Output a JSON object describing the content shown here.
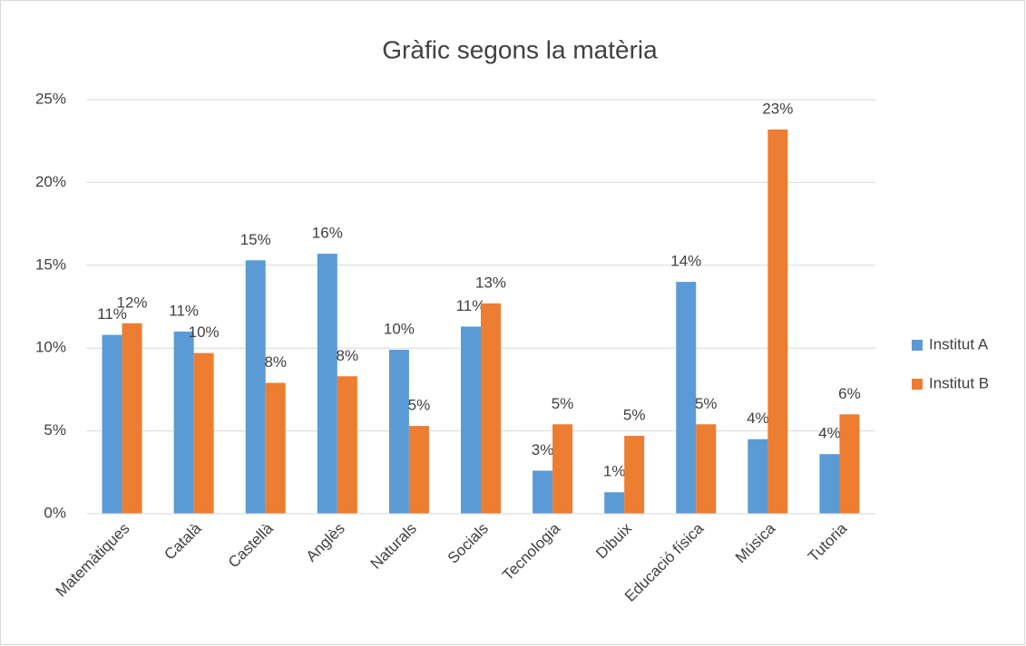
{
  "chart_data": {
    "type": "bar",
    "title": "Gràfic segons la matèria",
    "categories": [
      "Matemàtiques",
      "Català",
      "Castellà",
      "Anglès",
      "Naturals",
      "Socials",
      "Tecnologia",
      "Dibuix",
      "Educació física",
      "Música",
      "Tutoria"
    ],
    "series": [
      {
        "name": "Institut A",
        "color": "#5b9bd5",
        "values": [
          10.8,
          11.0,
          15.3,
          15.7,
          9.9,
          11.3,
          2.6,
          1.3,
          14.0,
          4.5,
          3.6
        ],
        "value_labels": [
          "11%",
          "11%",
          "15%",
          "16%",
          "10%",
          "11%",
          "3%",
          "1%",
          "14%",
          "4%",
          "4%"
        ]
      },
      {
        "name": "Institut B",
        "color": "#ed7d31",
        "values": [
          11.5,
          9.7,
          7.9,
          8.3,
          5.3,
          12.7,
          5.4,
          4.7,
          5.4,
          23.2,
          6.0
        ],
        "value_labels": [
          "12%",
          "10%",
          "8%",
          "8%",
          "5%",
          "13%",
          "5%",
          "5%",
          "5%",
          "23%",
          "6%"
        ]
      }
    ],
    "ylim": [
      0,
      25
    ],
    "yticks": [
      {
        "value": 0,
        "label": "0%"
      },
      {
        "value": 5,
        "label": "5%"
      },
      {
        "value": 10,
        "label": "10%"
      },
      {
        "value": 15,
        "label": "15%"
      },
      {
        "value": 20,
        "label": "20%"
      },
      {
        "value": 25,
        "label": "25%"
      }
    ],
    "grid": true,
    "legend": "right"
  }
}
